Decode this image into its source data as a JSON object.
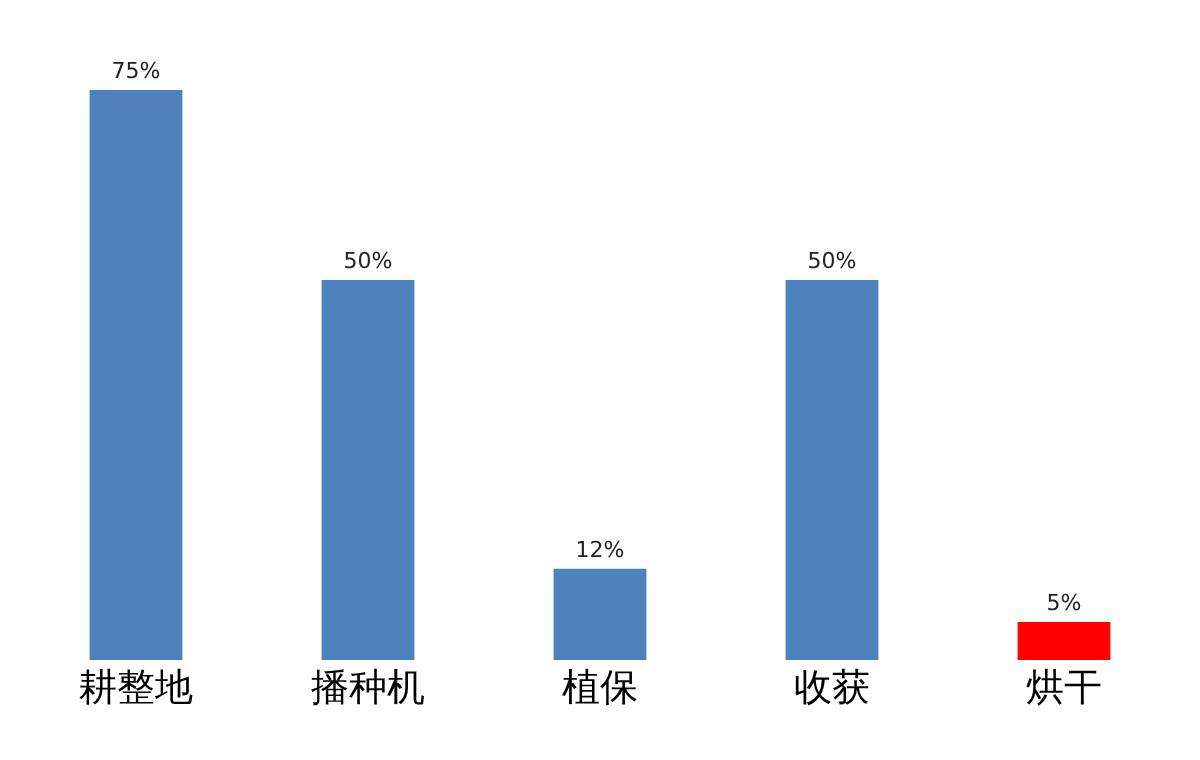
{
  "chart_data": {
    "type": "bar",
    "categories": [
      "耕整地",
      "播种机",
      "植保",
      "收获",
      "烘干"
    ],
    "values": [
      75,
      50,
      12,
      50,
      5
    ],
    "colors": [
      "#4f81bd",
      "#4f81bd",
      "#4f81bd",
      "#4f81bd",
      "#ff0000"
    ],
    "value_labels": [
      "75%",
      "50%",
      "12%",
      "50%",
      "5%"
    ]
  }
}
